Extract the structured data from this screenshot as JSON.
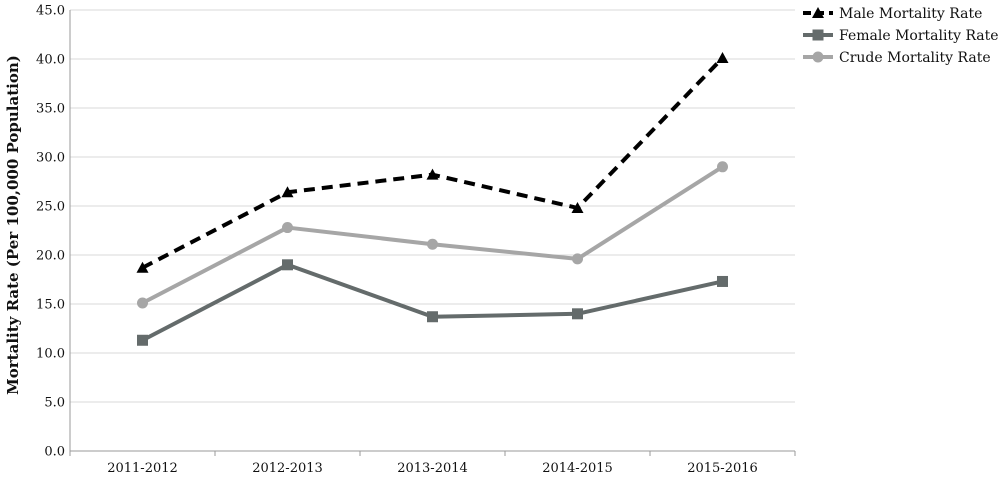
{
  "chart_data": {
    "type": "line",
    "title": "",
    "xlabel": "",
    "ylabel": "Mortality Rate (Per 100,000 Population)",
    "ylim": [
      0,
      45
    ],
    "y_ticks": [
      "0.0",
      "5.0",
      "10.0",
      "15.0",
      "20.0",
      "25.0",
      "30.0",
      "35.0",
      "40.0",
      "45.0"
    ],
    "grid": true,
    "legend_position": "top-right",
    "categories": [
      "2011-2012",
      "2012-2013",
      "2013-2014",
      "2014-2015",
      "2015-2016"
    ],
    "series": [
      {
        "name": "Male Mortality Rate",
        "values": [
          18.7,
          26.4,
          28.2,
          24.8,
          40.1
        ],
        "color": "#000000",
        "marker": "triangle",
        "dashed": true
      },
      {
        "name": "Female Mortality Rate",
        "values": [
          11.3,
          19.0,
          13.7,
          14.0,
          17.3
        ],
        "color": "#646b6b",
        "marker": "square",
        "dashed": false
      },
      {
        "name": "Crude Mortality Rate",
        "values": [
          15.1,
          22.8,
          21.1,
          19.6,
          29.0
        ],
        "color": "#a6a6a6",
        "marker": "circle",
        "dashed": false
      }
    ]
  }
}
